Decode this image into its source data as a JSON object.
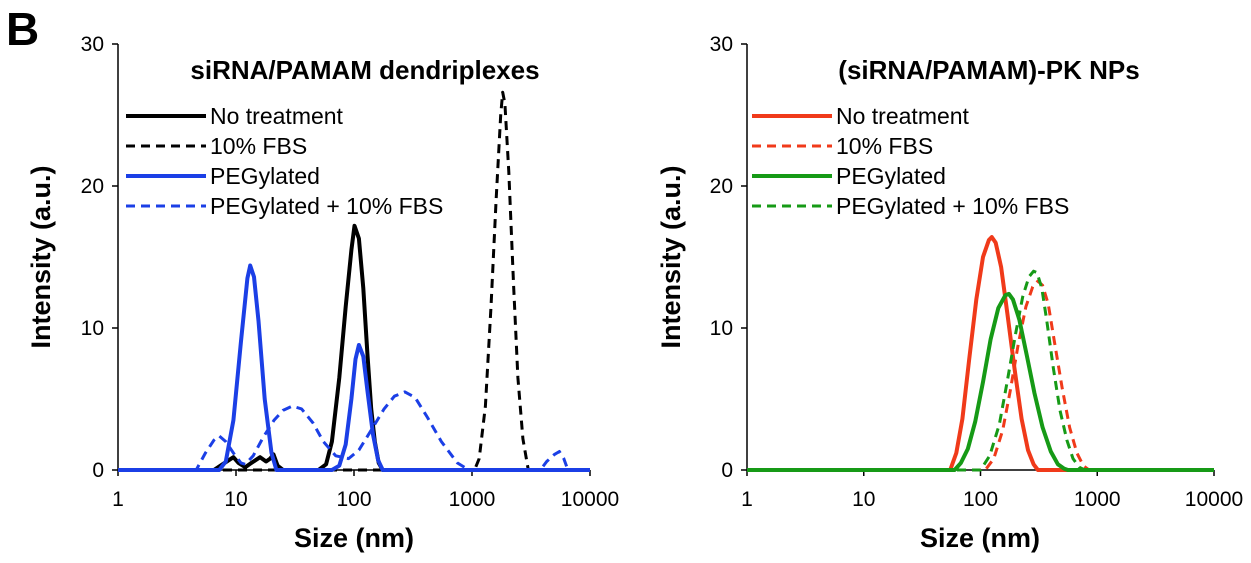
{
  "figure": {
    "panel_letter": "B"
  },
  "chart_data": [
    {
      "type": "line",
      "title": "siRNA/PAMAM dendriplexes",
      "xlabel": "Size (nm)",
      "ylabel": "Intensity (a.u.)",
      "xscale": "log",
      "xlim": [
        1,
        10000
      ],
      "ylim": [
        0,
        30
      ],
      "xticks": [
        "1",
        "10",
        "100",
        "1000",
        "10000"
      ],
      "yticks": [
        "0",
        "10",
        "20",
        "30"
      ],
      "grid": false,
      "legend_position": "top-left",
      "series": [
        {
          "name": "No treatment",
          "color": "#000000",
          "dashed": false,
          "x": [
            1,
            6.5,
            8,
            9.5,
            10.5,
            12,
            13.5,
            16,
            18,
            19.5,
            20.8,
            22.5,
            25,
            50,
            58,
            65,
            75,
            85,
            95,
            101,
            110,
            120,
            130,
            140,
            150,
            162,
            175,
            10000
          ],
          "y": [
            0,
            0,
            0.5,
            0.9,
            0.5,
            0.2,
            0.5,
            0.9,
            0.6,
            0.8,
            1.1,
            0.3,
            0,
            0,
            0.4,
            2.0,
            6.5,
            11.5,
            15.5,
            17.2,
            16.3,
            12.8,
            8.2,
            4.3,
            2.0,
            0.5,
            0,
            0
          ]
        },
        {
          "name": "10% FBS",
          "color": "#000000",
          "dashed": true,
          "x": [
            1,
            1050,
            1150,
            1300,
            1450,
            1600,
            1750,
            1820,
            1900,
            2050,
            2250,
            2450,
            2700,
            3000,
            10000
          ],
          "y": [
            0,
            0,
            0.8,
            4.5,
            11.5,
            19.0,
            25.0,
            26.6,
            25.8,
            21.0,
            13.0,
            6.5,
            2.2,
            0,
            0
          ]
        },
        {
          "name": "PEGylated",
          "color": "#1B3FE6",
          "dashed": false,
          "x": [
            1,
            7.2,
            8.2,
            9.5,
            11,
            12.5,
            13.2,
            14.2,
            15.5,
            17.5,
            20,
            22,
            65,
            75,
            85,
            95,
            103,
            110,
            120,
            130,
            145,
            160,
            175,
            10000
          ],
          "y": [
            0,
            0,
            0.6,
            3.5,
            9.0,
            13.5,
            14.4,
            13.6,
            10.5,
            5.0,
            1.2,
            0,
            0,
            0.3,
            1.8,
            5.0,
            7.8,
            8.8,
            8.0,
            5.6,
            2.5,
            0.7,
            0,
            0
          ]
        },
        {
          "name": "PEGylated + 10% FBS",
          "color": "#1B3FE6",
          "dashed": true,
          "x": [
            1,
            4.6,
            5.5,
            6.5,
            7.2,
            8.2,
            9.5,
            11,
            12,
            14,
            17,
            21,
            25,
            30,
            36,
            45,
            55,
            70,
            90,
            110,
            140,
            180,
            220,
            270,
            330,
            420,
            550,
            750,
            900,
            1000,
            3800,
            4300,
            5000,
            5500,
            6000,
            6500,
            10000
          ],
          "y": [
            0,
            0,
            1.2,
            2.1,
            2.4,
            2.0,
            1.2,
            0.5,
            0.4,
            1.0,
            2.3,
            3.5,
            4.2,
            4.5,
            4.3,
            3.3,
            2.0,
            1.0,
            0.8,
            1.4,
            2.8,
            4.3,
            5.2,
            5.5,
            5.1,
            3.7,
            2.0,
            0.5,
            0.1,
            0,
            0,
            0.6,
            1.1,
            1.3,
            0.8,
            0,
            0
          ]
        }
      ]
    },
    {
      "type": "line",
      "title": "(siRNA/PAMAM)-PK NPs",
      "xlabel": "Size (nm)",
      "ylabel": "Intensity (a.u.)",
      "xscale": "log",
      "xlim": [
        1,
        10000
      ],
      "ylim": [
        0,
        30
      ],
      "xticks": [
        "1",
        "10",
        "100",
        "1000",
        "10000"
      ],
      "yticks": [
        "0",
        "10",
        "20",
        "30"
      ],
      "grid": false,
      "legend_position": "top-left",
      "series": [
        {
          "name": "No treatment",
          "color": "#F03A1A",
          "dashed": false,
          "x": [
            1,
            55,
            62,
            70,
            80,
            92,
            105,
            118,
            125,
            135,
            150,
            170,
            195,
            225,
            255,
            285,
            310,
            10000
          ],
          "y": [
            0,
            0,
            1.2,
            3.6,
            7.8,
            12.0,
            15.0,
            16.2,
            16.4,
            16.0,
            14.3,
            11.0,
            7.2,
            3.6,
            1.4,
            0.4,
            0,
            0
          ]
        },
        {
          "name": "10% FBS",
          "color": "#F03A1A",
          "dashed": true,
          "x": [
            1,
            110,
            130,
            155,
            180,
            210,
            245,
            280,
            310,
            340,
            380,
            430,
            500,
            580,
            670,
            760,
            850,
            950,
            10000
          ],
          "y": [
            0,
            0,
            0.8,
            2.8,
            5.6,
            8.8,
            11.5,
            12.9,
            13.3,
            13.0,
            11.7,
            9.0,
            5.8,
            3.0,
            1.2,
            0.3,
            0,
            0,
            0
          ]
        },
        {
          "name": "PEGylated",
          "color": "#169A16",
          "dashed": false,
          "x": [
            1,
            60,
            68,
            78,
            90,
            105,
            122,
            142,
            163,
            175,
            190,
            215,
            250,
            290,
            340,
            400,
            460,
            520,
            560,
            10000
          ],
          "y": [
            0,
            0,
            0.5,
            1.5,
            3.4,
            6.2,
            9.2,
            11.4,
            12.3,
            12.4,
            12.0,
            10.6,
            8.0,
            5.4,
            3.0,
            1.3,
            0.4,
            0.1,
            0,
            0
          ]
        },
        {
          "name": "PEGylated + 10% FBS",
          "color": "#169A16",
          "dashed": true,
          "x": [
            1,
            100,
            120,
            145,
            170,
            200,
            230,
            260,
            285,
            305,
            335,
            370,
            420,
            480,
            550,
            620,
            700,
            780,
            10000
          ],
          "y": [
            0,
            0,
            1.0,
            3.2,
            6.3,
            9.6,
            12.2,
            13.6,
            14.0,
            13.9,
            12.8,
            10.5,
            7.2,
            4.2,
            2.1,
            0.8,
            0.2,
            0,
            0
          ]
        }
      ]
    }
  ]
}
